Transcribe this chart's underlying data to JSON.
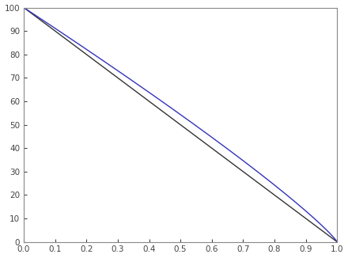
{
  "N": 20,
  "a": 0.001,
  "x_min": 0.0,
  "x_max": 1.0,
  "y_min": 0.0,
  "y_max": 100.0,
  "xticks": [
    0.0,
    0.1,
    0.2,
    0.3,
    0.4,
    0.5,
    0.6,
    0.7,
    0.8,
    0.9,
    1.0
  ],
  "yticks": [
    0,
    10,
    20,
    30,
    40,
    50,
    60,
    70,
    80,
    90,
    100
  ],
  "line_color_black": "#333333",
  "line_color_blue": "#3333bb",
  "linewidth": 1.0,
  "background_color": "#ffffff",
  "scale": 100,
  "exponent_blue": 0.88
}
